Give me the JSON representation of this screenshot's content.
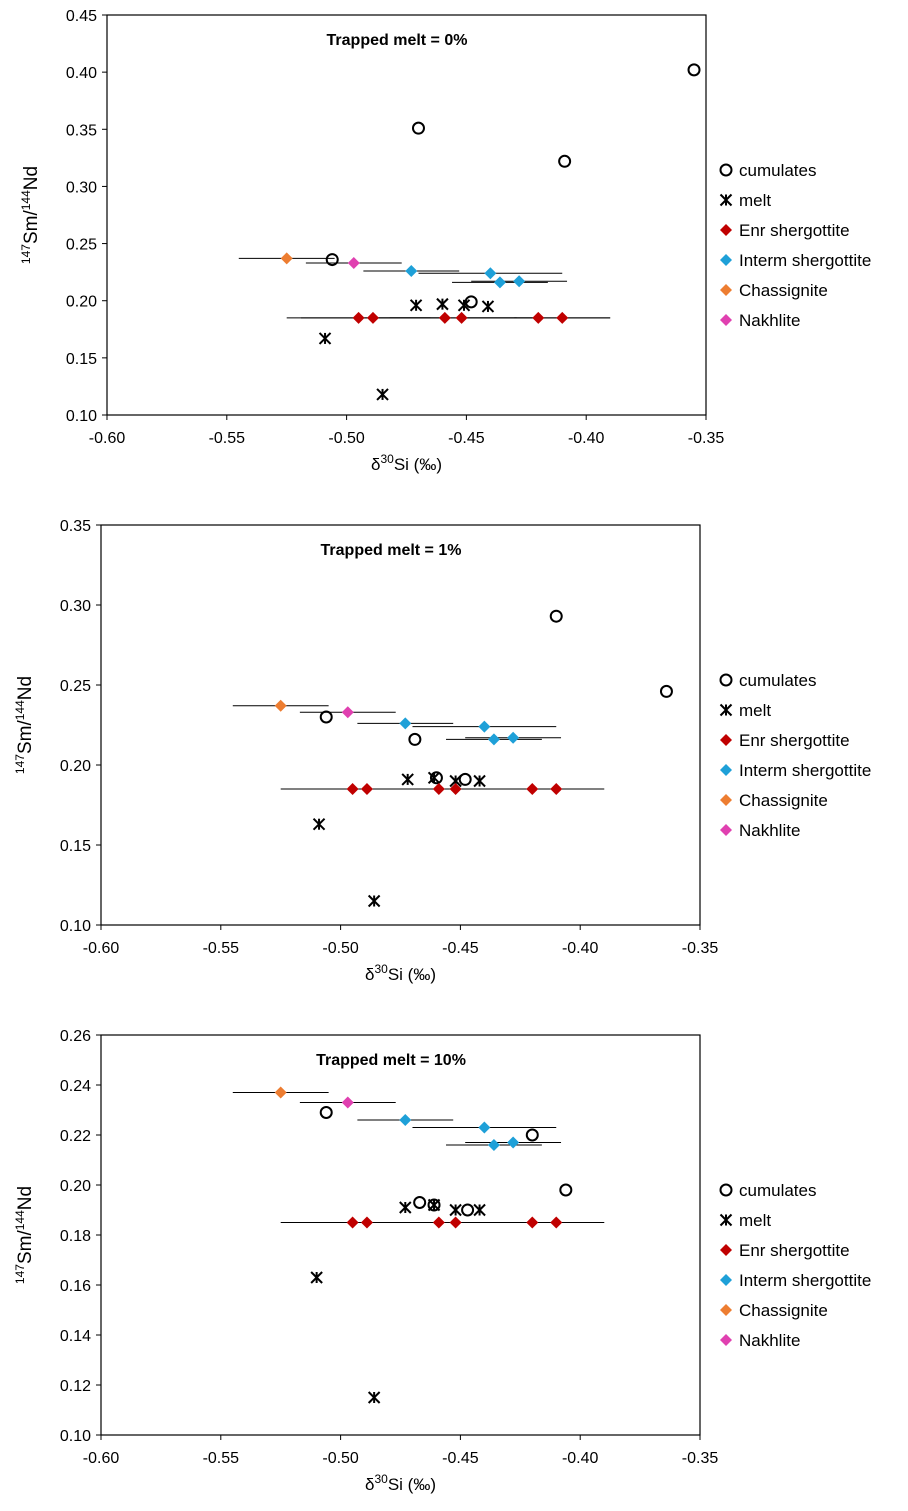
{
  "chart_data": [
    {
      "type": "scatter",
      "title": "Trapped melt = 0%",
      "xlabel_prefix": "δ",
      "xlabel_sup": "30",
      "xlabel_rest": "Si (‰)",
      "ylabel": {
        "sup1": "147",
        "part1": "Sm/",
        "sup2": "144",
        "part2": "Nd"
      },
      "xlim": [
        -0.6,
        -0.35
      ],
      "xticks": [
        "-0.60",
        "-0.55",
        "-0.50",
        "-0.45",
        "-0.40",
        "-0.35"
      ],
      "ylim": [
        0.1,
        0.45
      ],
      "yticks": [
        "0.10",
        "0.15",
        "0.20",
        "0.25",
        "0.30",
        "0.35",
        "0.40",
        "0.45"
      ],
      "grid": false,
      "legend_position": "right",
      "series": [
        {
          "name": "cumulates",
          "marker": "circle",
          "color": "#000000",
          "points": [
            [
              -0.355,
              0.402
            ],
            [
              -0.47,
              0.351
            ],
            [
              -0.409,
              0.322
            ],
            [
              -0.506,
              0.236
            ],
            [
              -0.448,
              0.199
            ]
          ]
        },
        {
          "name": "melt",
          "marker": "star",
          "color": "#000000",
          "points": [
            [
              -0.509,
              0.167
            ],
            [
              -0.485,
              0.118
            ],
            [
              -0.471,
              0.196
            ],
            [
              -0.46,
              0.197
            ],
            [
              -0.451,
              0.196
            ],
            [
              -0.441,
              0.195
            ]
          ]
        },
        {
          "name": "Enr shergottite",
          "marker": "diamond",
          "color": "#c00000",
          "points": [
            [
              -0.495,
              0.185,
              0.03
            ],
            [
              -0.489,
              0.185,
              0.03
            ],
            [
              -0.459,
              0.185,
              0.03
            ],
            [
              -0.452,
              0.185,
              0.03
            ],
            [
              -0.42,
              0.185,
              0.03
            ],
            [
              -0.41,
              0.185,
              0.02
            ]
          ]
        },
        {
          "name": "Interm shergottite",
          "marker": "diamond",
          "color": "#1ea0d8",
          "points": [
            [
              -0.473,
              0.226,
              0.02
            ],
            [
              -0.44,
              0.224,
              0.03
            ],
            [
              -0.436,
              0.216,
              0.02
            ],
            [
              -0.428,
              0.217,
              0.02
            ]
          ]
        },
        {
          "name": "Chassignite",
          "marker": "diamond",
          "color": "#ed7d31",
          "points": [
            [
              -0.525,
              0.237,
              0.02
            ]
          ]
        },
        {
          "name": "Nakhlite",
          "marker": "diamond",
          "color": "#e040b0",
          "points": [
            [
              -0.497,
              0.233,
              0.02
            ]
          ]
        }
      ]
    },
    {
      "type": "scatter",
      "title": "Trapped melt = 1%",
      "xlabel_prefix": "δ",
      "xlabel_sup": "30",
      "xlabel_rest": "Si (‰)",
      "ylabel": {
        "sup1": "147",
        "part1": "Sm/",
        "sup2": "144",
        "part2": "Nd"
      },
      "xlim": [
        -0.6,
        -0.35
      ],
      "xticks": [
        "-0.60",
        "-0.55",
        "-0.50",
        "-0.45",
        "-0.40",
        "-0.35"
      ],
      "ylim": [
        0.1,
        0.35
      ],
      "yticks": [
        "0.10",
        "0.15",
        "0.20",
        "0.25",
        "0.30",
        "0.35"
      ],
      "grid": false,
      "legend_position": "right",
      "series": [
        {
          "name": "cumulates",
          "marker": "circle",
          "color": "#000000",
          "points": [
            [
              -0.41,
              0.293
            ],
            [
              -0.364,
              0.246
            ],
            [
              -0.506,
              0.23
            ],
            [
              -0.469,
              0.216
            ],
            [
              -0.448,
              0.191
            ],
            [
              -0.46,
              0.192
            ]
          ]
        },
        {
          "name": "melt",
          "marker": "star",
          "color": "#000000",
          "points": [
            [
              -0.509,
              0.163
            ],
            [
              -0.486,
              0.115
            ],
            [
              -0.472,
              0.191
            ],
            [
              -0.461,
              0.192
            ],
            [
              -0.452,
              0.19
            ],
            [
              -0.442,
              0.19
            ]
          ]
        },
        {
          "name": "Enr shergottite",
          "marker": "diamond",
          "color": "#c00000",
          "points": [
            [
              -0.495,
              0.185,
              0.03
            ],
            [
              -0.489,
              0.185,
              0.03
            ],
            [
              -0.459,
              0.185,
              0.03
            ],
            [
              -0.452,
              0.185,
              0.03
            ],
            [
              -0.42,
              0.185,
              0.03
            ],
            [
              -0.41,
              0.185,
              0.02
            ]
          ]
        },
        {
          "name": "Interm shergottite",
          "marker": "diamond",
          "color": "#1ea0d8",
          "points": [
            [
              -0.473,
              0.226,
              0.02
            ],
            [
              -0.44,
              0.224,
              0.03
            ],
            [
              -0.436,
              0.216,
              0.02
            ],
            [
              -0.428,
              0.217,
              0.02
            ]
          ]
        },
        {
          "name": "Chassignite",
          "marker": "diamond",
          "color": "#ed7d31",
          "points": [
            [
              -0.525,
              0.237,
              0.02
            ]
          ]
        },
        {
          "name": "Nakhlite",
          "marker": "diamond",
          "color": "#e040b0",
          "points": [
            [
              -0.497,
              0.233,
              0.02
            ]
          ]
        }
      ]
    },
    {
      "type": "scatter",
      "title": "Trapped melt = 10%",
      "xlabel_prefix": "δ",
      "xlabel_sup": "30",
      "xlabel_rest": "Si (‰)",
      "ylabel": {
        "sup1": "147",
        "part1": "Sm/",
        "sup2": "144",
        "part2": "Nd"
      },
      "xlim": [
        -0.6,
        -0.35
      ],
      "xticks": [
        "-0.60",
        "-0.55",
        "-0.50",
        "-0.45",
        "-0.40",
        "-0.35"
      ],
      "ylim": [
        0.1,
        0.26
      ],
      "yticks": [
        "0.10",
        "0.12",
        "0.14",
        "0.16",
        "0.18",
        "0.20",
        "0.22",
        "0.24",
        "0.26"
      ],
      "grid": false,
      "legend_position": "right",
      "series": [
        {
          "name": "cumulates",
          "marker": "circle",
          "color": "#000000",
          "points": [
            [
              -0.406,
              0.198
            ],
            [
              -0.42,
              0.22
            ],
            [
              -0.506,
              0.229
            ],
            [
              -0.467,
              0.193
            ],
            [
              -0.461,
              0.192
            ],
            [
              -0.447,
              0.19
            ]
          ]
        },
        {
          "name": "melt",
          "marker": "star",
          "color": "#000000",
          "points": [
            [
              -0.51,
              0.163
            ],
            [
              -0.486,
              0.115
            ],
            [
              -0.473,
              0.191
            ],
            [
              -0.461,
              0.192
            ],
            [
              -0.452,
              0.19
            ],
            [
              -0.442,
              0.19
            ]
          ]
        },
        {
          "name": "Enr shergottite",
          "marker": "diamond",
          "color": "#c00000",
          "points": [
            [
              -0.495,
              0.185,
              0.03
            ],
            [
              -0.489,
              0.185,
              0.03
            ],
            [
              -0.459,
              0.185,
              0.03
            ],
            [
              -0.452,
              0.185,
              0.03
            ],
            [
              -0.42,
              0.185,
              0.03
            ],
            [
              -0.41,
              0.185,
              0.02
            ]
          ]
        },
        {
          "name": "Interm shergottite",
          "marker": "diamond",
          "color": "#1ea0d8",
          "points": [
            [
              -0.473,
              0.226,
              0.02
            ],
            [
              -0.44,
              0.223,
              0.03
            ],
            [
              -0.436,
              0.216,
              0.02
            ],
            [
              -0.428,
              0.217,
              0.02
            ]
          ]
        },
        {
          "name": "Chassignite",
          "marker": "diamond",
          "color": "#ed7d31",
          "points": [
            [
              -0.525,
              0.237,
              0.02
            ]
          ]
        },
        {
          "name": "Nakhlite",
          "marker": "diamond",
          "color": "#e040b0",
          "points": [
            [
              -0.497,
              0.233,
              0.02
            ]
          ]
        }
      ]
    }
  ]
}
